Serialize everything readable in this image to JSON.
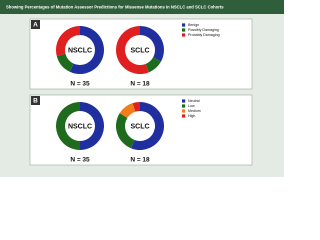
{
  "title": "Showing Percentages of Mutation Assessor Predictions for Missense Mutations in NSCLC and SCLC Cohorts",
  "chart_data": [
    {
      "type": "donut",
      "label": "A",
      "categories": [
        "Benign",
        "Possibly Damaging",
        "Probably Damaging"
      ],
      "colors": [
        "#1f2fa0",
        "#1e6b1e",
        "#e02020"
      ],
      "series": [
        {
          "name": "NSCLC",
          "n_label": "N = 35",
          "values": [
            57,
            14,
            29
          ]
        },
        {
          "name": "SCLC",
          "n_label": "N = 18",
          "values": [
            33,
            11,
            56
          ]
        }
      ]
    },
    {
      "type": "donut",
      "label": "B",
      "categories": [
        "Neutral",
        "Low",
        "Medium",
        "High"
      ],
      "colors": [
        "#1f2fa0",
        "#1e6b1e",
        "#f07d1a",
        "#e02020"
      ],
      "series": [
        {
          "name": "NSCLC",
          "n_label": "N = 35",
          "values": [
            50,
            50,
            0,
            0
          ]
        },
        {
          "name": "SCLC",
          "n_label": "N = 18",
          "values": [
            56,
            28,
            11,
            5
          ]
        }
      ]
    }
  ]
}
